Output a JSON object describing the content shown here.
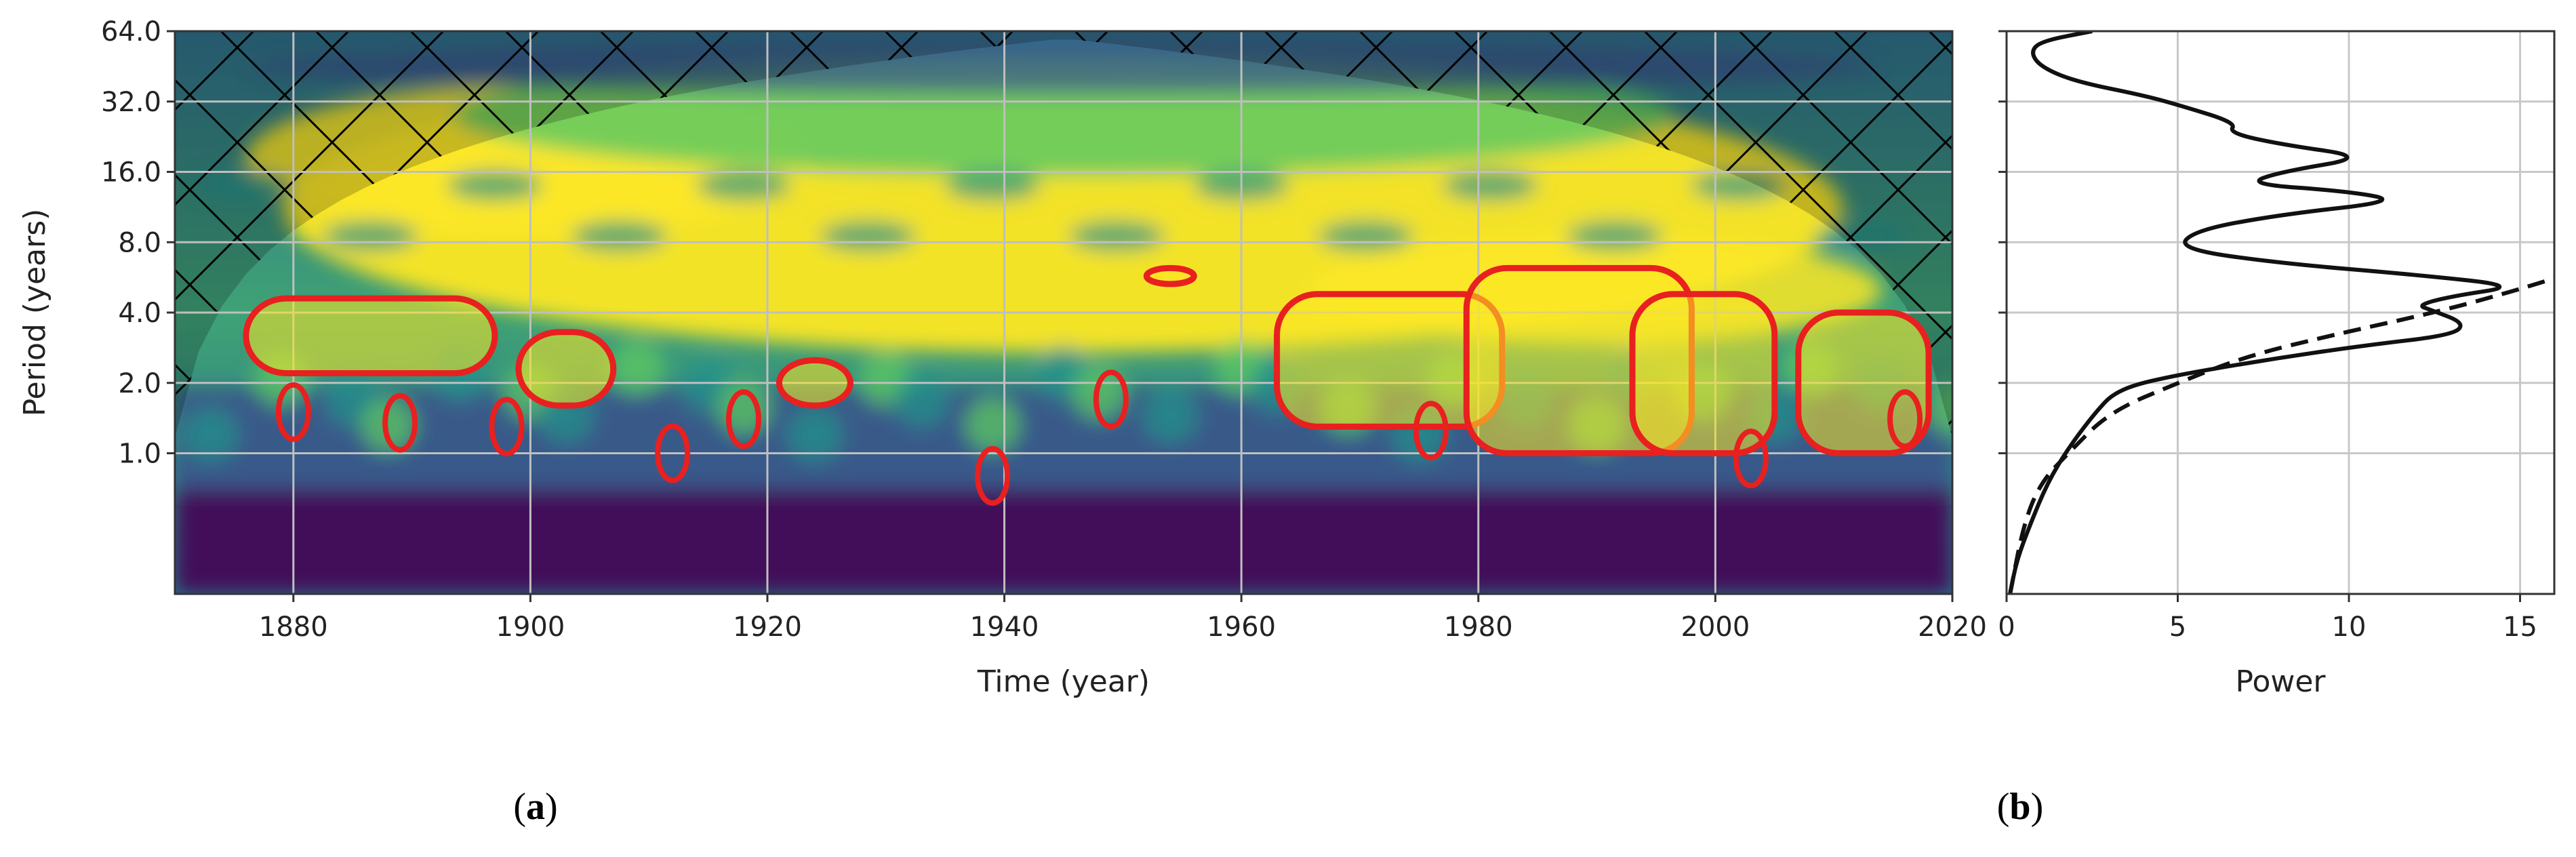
{
  "chart_data": [
    {
      "type": "heatmap",
      "panel_label": "(a)",
      "panel_label_parts": [
        "(",
        "a",
        ")"
      ],
      "xlabel": "Time (year)",
      "ylabel": "Period (years)",
      "xlim": [
        1870,
        2020
      ],
      "ylim": [
        0.25,
        64
      ],
      "y_scale": "log2",
      "x_ticks": [
        "1880",
        "1900",
        "1920",
        "1940",
        "1960",
        "1980",
        "2000",
        "2020"
      ],
      "x_tick_values": [
        1880,
        1900,
        1920,
        1940,
        1960,
        1980,
        2000,
        2020
      ],
      "y_ticks": [
        "64.0",
        "32.0",
        "16.0",
        "8.0",
        "4.0",
        "2.0",
        "1.0"
      ],
      "y_tick_values": [
        64,
        32,
        16,
        8,
        4,
        2,
        1
      ],
      "grid": true,
      "colormap": [
        "#440154",
        "#3b528b",
        "#21918c",
        "#5ec962",
        "#fde725"
      ],
      "cone_of_influence": "hatched",
      "significance_contour_color": "#e8201f",
      "significant_regions": [
        {
          "x": [
            1876,
            1897
          ],
          "period": [
            2.2,
            4.6
          ]
        },
        {
          "x": [
            1899,
            1907
          ],
          "period": [
            1.6,
            3.3
          ]
        },
        {
          "x": [
            1921,
            1927
          ],
          "period": [
            1.6,
            2.5
          ]
        },
        {
          "x": [
            1963,
            1982
          ],
          "period": [
            1.3,
            4.8
          ]
        },
        {
          "x": [
            1979,
            1998
          ],
          "period": [
            1.0,
            6.2
          ]
        },
        {
          "x": [
            1993,
            2005
          ],
          "period": [
            1.0,
            4.8
          ]
        },
        {
          "x": [
            2007,
            2018
          ],
          "period": [
            1.0,
            4.0
          ]
        },
        {
          "x": [
            1952,
            1956
          ],
          "period": [
            5.3,
            6.2
          ]
        }
      ]
    },
    {
      "type": "line",
      "panel_label": "(b)",
      "panel_label_parts": [
        "(",
        "b",
        ")"
      ],
      "xlabel": "Power",
      "ylabel": "",
      "xlim": [
        0,
        16
      ],
      "ylim": [
        0.25,
        64
      ],
      "y_scale": "log2",
      "x_ticks": [
        "0",
        "5",
        "10",
        "15"
      ],
      "x_tick_values": [
        0,
        5,
        10,
        15
      ],
      "grid": true,
      "series": [
        {
          "style": "solid",
          "color": "#111111",
          "points": [
            [
              0.1,
              0.25
            ],
            [
              0.3,
              0.35
            ],
            [
              0.7,
              0.5
            ],
            [
              1.2,
              0.75
            ],
            [
              1.8,
              1.05
            ],
            [
              2.6,
              1.5
            ],
            [
              3.2,
              1.85
            ],
            [
              4.5,
              2.1
            ],
            [
              7.5,
              2.5
            ],
            [
              10.5,
              2.9
            ],
            [
              13.0,
              3.2
            ],
            [
              13.4,
              3.6
            ],
            [
              12.4,
              4.1
            ],
            [
              12.0,
              4.3
            ],
            [
              13.0,
              4.7
            ],
            [
              15.0,
              5.2
            ],
            [
              12.0,
              5.8
            ],
            [
              8.0,
              6.5
            ],
            [
              5.0,
              7.5
            ],
            [
              5.5,
              9.0
            ],
            [
              8.0,
              10.5
            ],
            [
              11.5,
              12.0
            ],
            [
              10.0,
              13.2
            ],
            [
              7.0,
              14.2
            ],
            [
              8.0,
              16.0
            ],
            [
              10.6,
              18.5
            ],
            [
              8.0,
              21.0
            ],
            [
              6.5,
              23.5
            ],
            [
              6.7,
              26.0
            ],
            [
              5.0,
              31.0
            ],
            [
              4.0,
              34.0
            ],
            [
              2.0,
              39.0
            ],
            [
              1.0,
              45.0
            ],
            [
              0.7,
              52.0
            ],
            [
              1.0,
              58.0
            ],
            [
              2.5,
              64.0
            ]
          ]
        },
        {
          "style": "dashed",
          "color": "#111111",
          "points": [
            [
              0.1,
              0.25
            ],
            [
              0.5,
              0.5
            ],
            [
              1.0,
              0.75
            ],
            [
              1.8,
              1.0
            ],
            [
              3.0,
              1.5
            ],
            [
              5.0,
              2.0
            ],
            [
              7.0,
              2.6
            ],
            [
              9.5,
              3.2
            ],
            [
              12.5,
              4.0
            ],
            [
              14.5,
              4.8
            ],
            [
              16.0,
              5.6
            ]
          ]
        }
      ]
    }
  ]
}
